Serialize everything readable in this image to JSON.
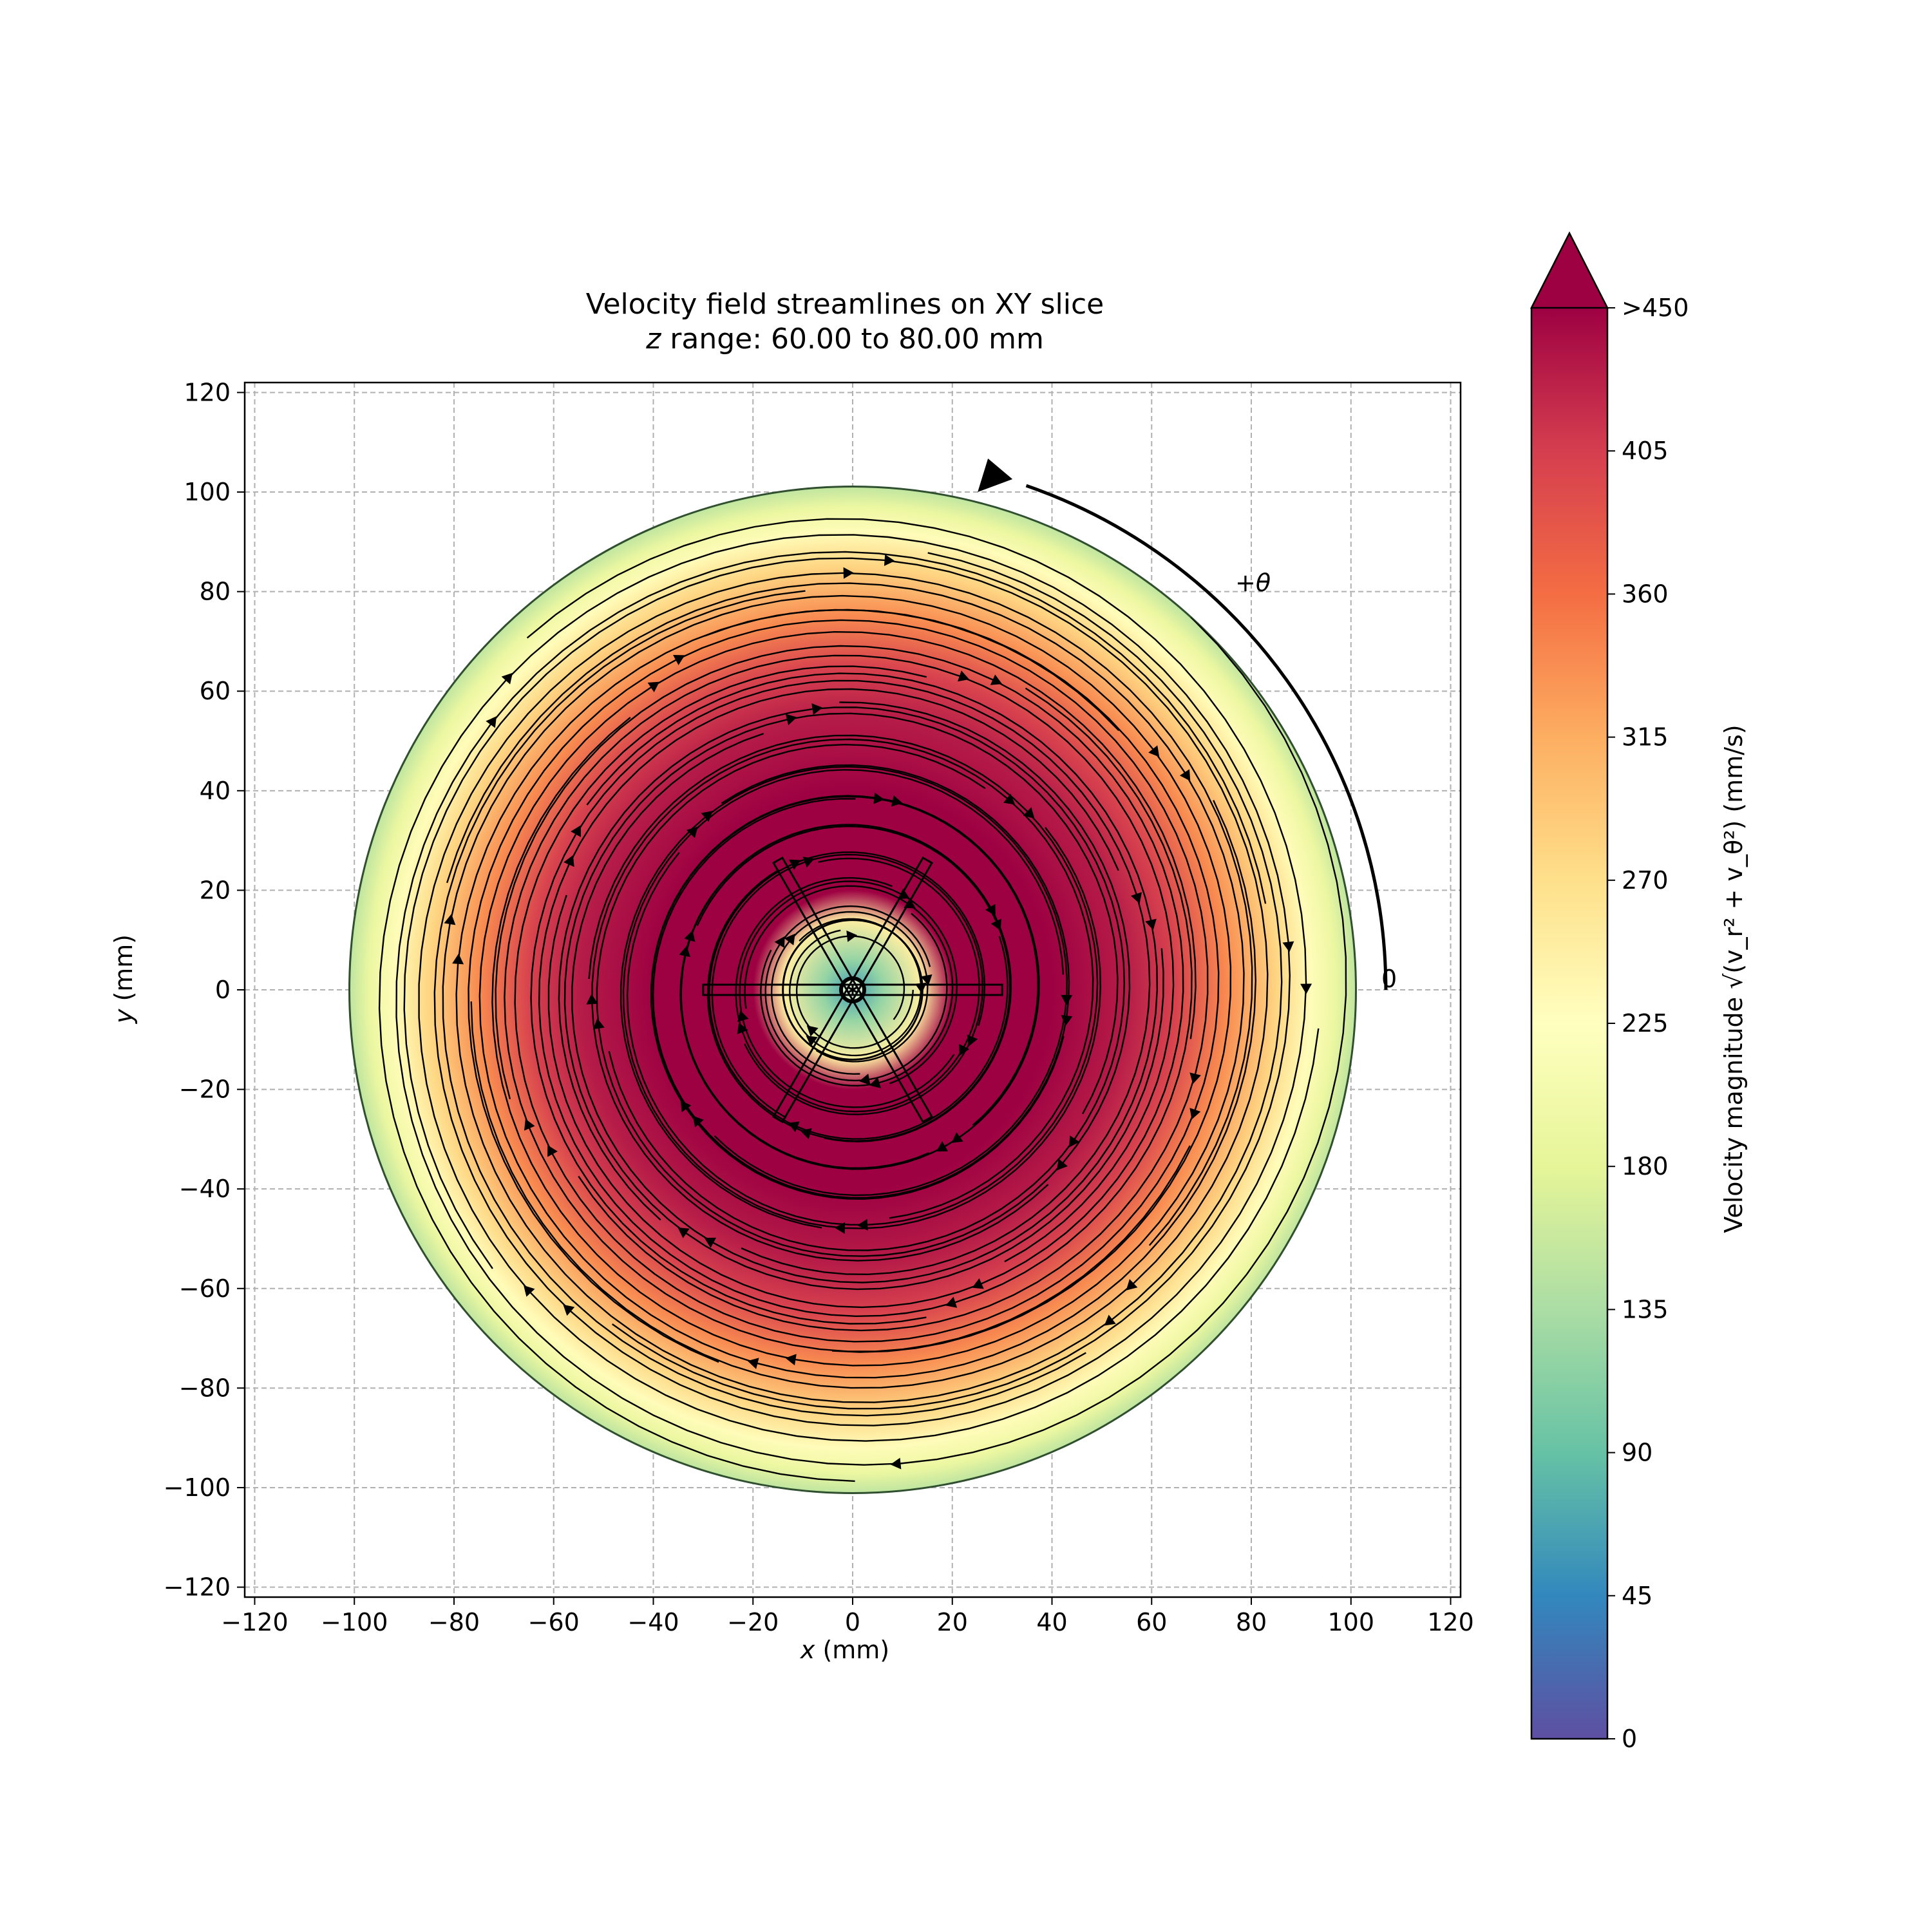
{
  "chart_data": {
    "type": "heatmap",
    "title_line1": "Velocity field streamlines on XY slice",
    "title_line2_var": "z",
    "title_line2_rest": " range: 60.00 to 80.00 mm",
    "xlabel_var": "x",
    "xlabel_unit": " (mm)",
    "ylabel_var": "y",
    "ylabel_unit": " (mm)",
    "xlim": [
      -122,
      122
    ],
    "ylim": [
      -122,
      122
    ],
    "xticks": [
      -120,
      -100,
      -80,
      -60,
      -40,
      -20,
      0,
      20,
      40,
      60,
      80,
      100,
      120
    ],
    "yticks": [
      -120,
      -100,
      -80,
      -60,
      -40,
      -20,
      0,
      20,
      40,
      60,
      80,
      100,
      120
    ],
    "grid": true,
    "domain_radius_mm": 101,
    "hub_radius_mm": 14,
    "impeller_blades_deg": [
      0,
      60,
      120,
      180,
      240,
      300
    ],
    "impeller_blade_length_mm": 30,
    "rotation": {
      "direction": "counterclockwise",
      "label_plus": "+θ",
      "label_zero": "0"
    },
    "colorbar": {
      "label": "Velocity magnitude √(v_r² + v_θ²) (mm/s)",
      "min": 0,
      "max": 450,
      "ticks": [
        0,
        45,
        90,
        135,
        180,
        225,
        270,
        315,
        360,
        405
      ],
      "top_label": ">450",
      "colormap": "Spectral_r",
      "extend": "max"
    },
    "colormap_stops": [
      "#5e4fa2",
      "#3288bd",
      "#66c2a5",
      "#abdda4",
      "#e6f598",
      "#ffffbf",
      "#fee08b",
      "#fdae61",
      "#f46d43",
      "#d53e4f",
      "#9e0142"
    ],
    "speed_profile": {
      "radius_mm": [
        0,
        6,
        14,
        20,
        40,
        55,
        65,
        75,
        85,
        92,
        97,
        101
      ],
      "speed_mm_s": [
        60,
        120,
        250,
        450,
        450,
        430,
        400,
        340,
        280,
        230,
        190,
        150
      ]
    },
    "streamlines": {
      "pattern": "clockwise spiral",
      "count": 38
    }
  }
}
